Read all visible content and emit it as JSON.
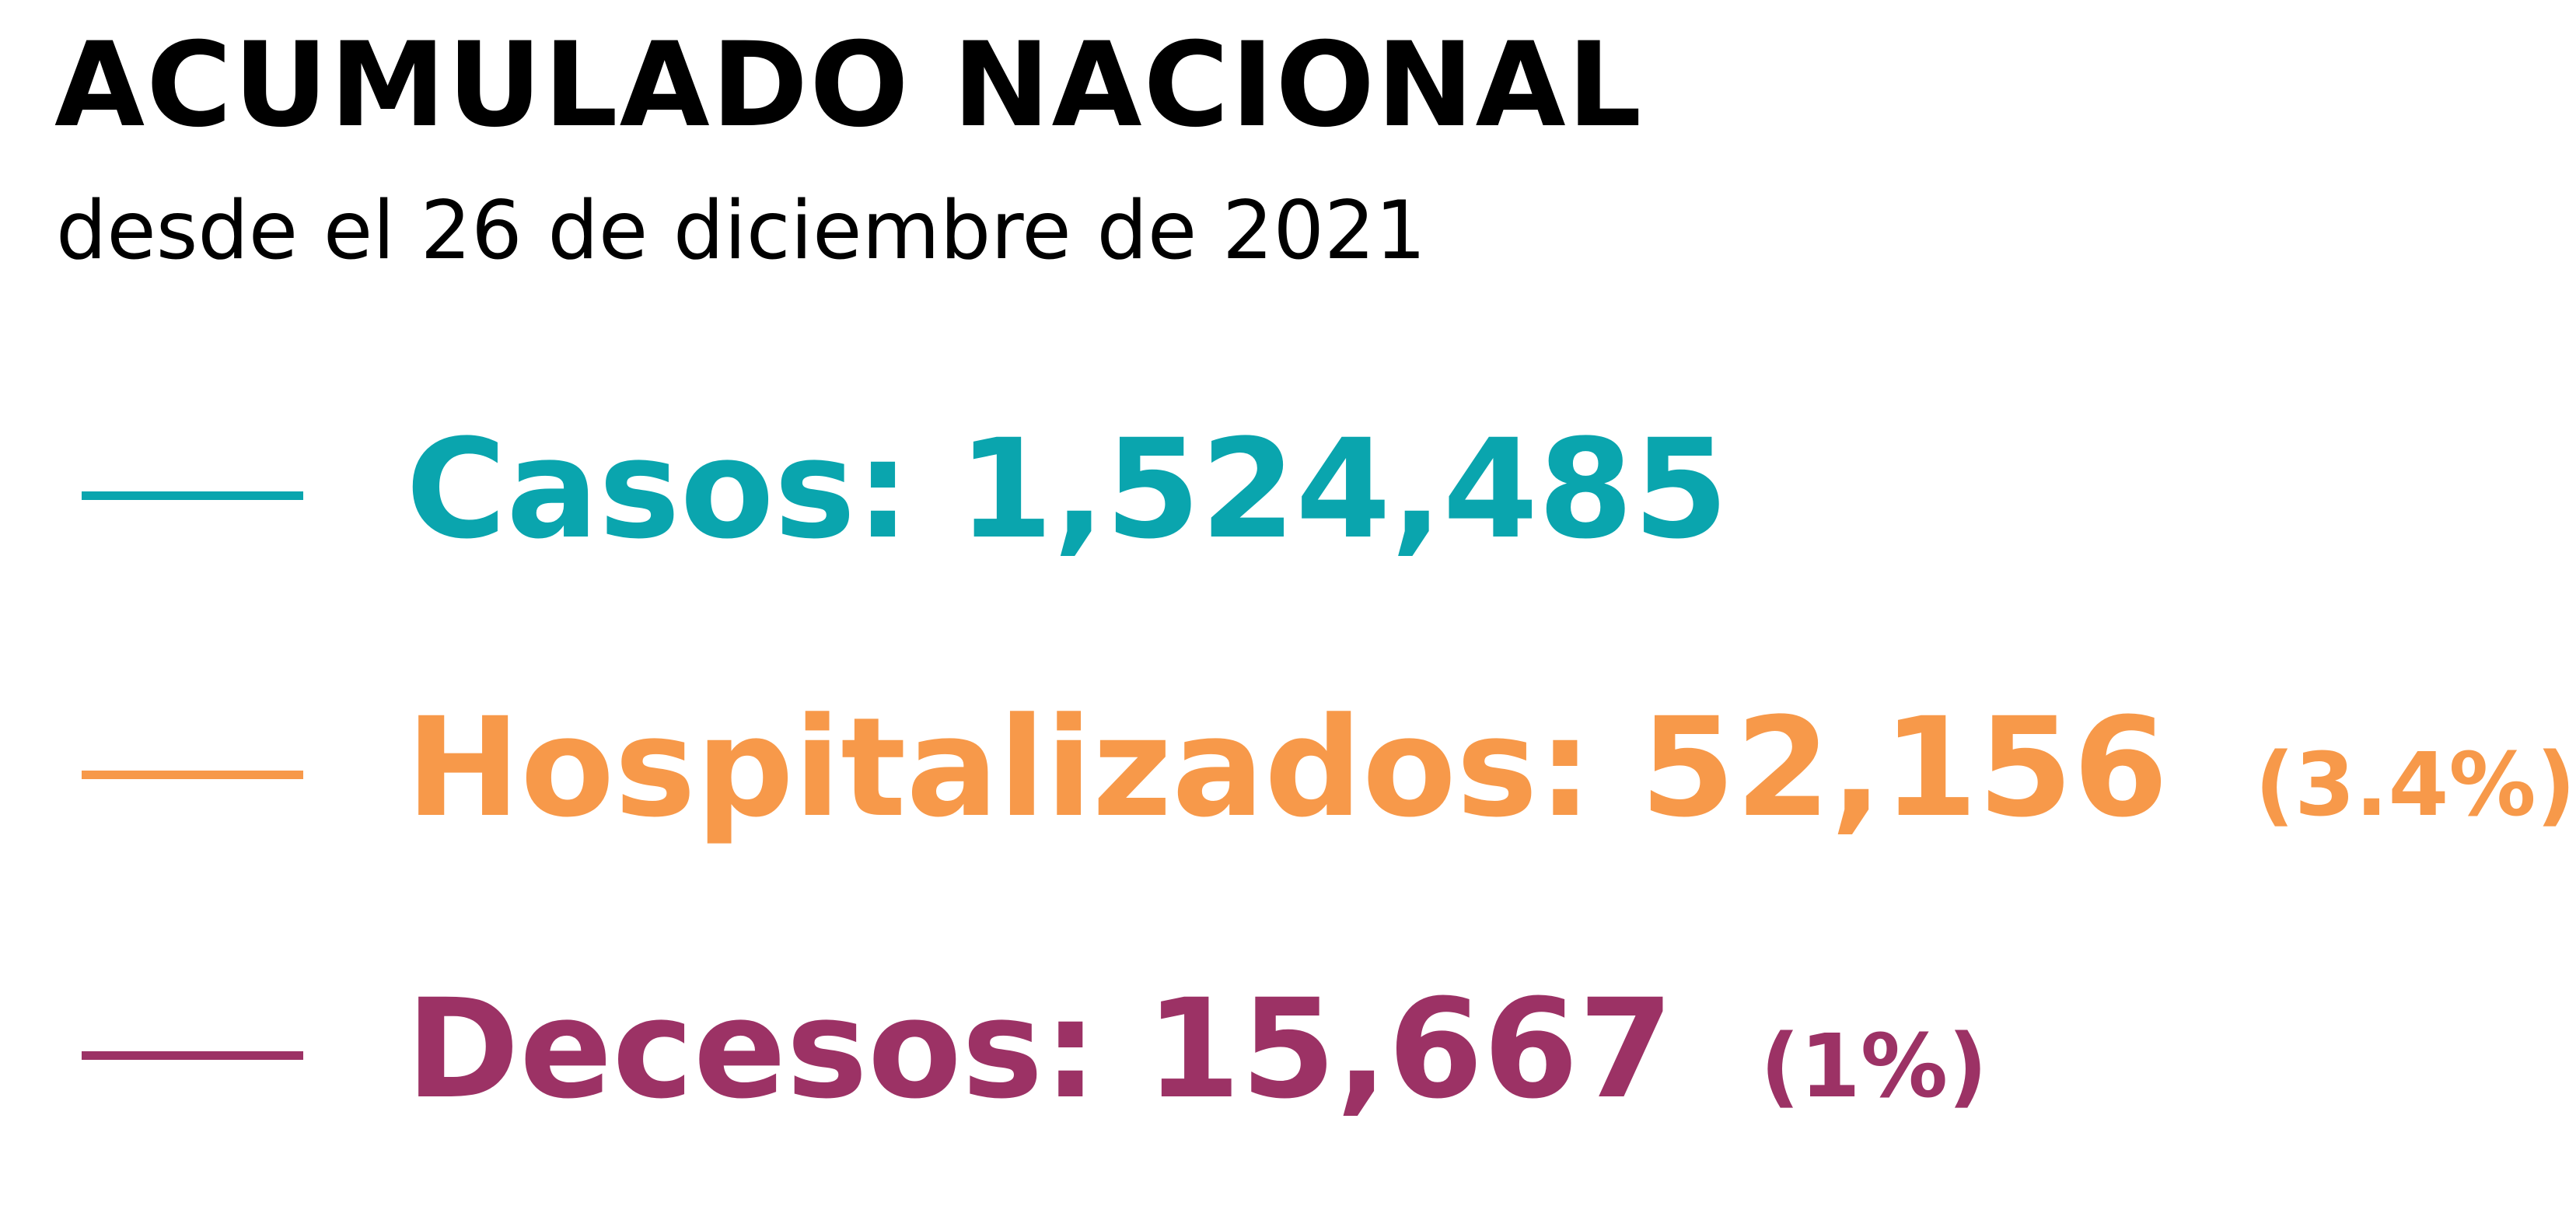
{
  "title": "ACUMULADO NACIONAL",
  "subtitle": "desde el 26 de diciembre de 2021",
  "colors": {
    "casos": "#0aa5ae",
    "hospitalizados": "#f7994a",
    "decesos": "#9c3265"
  },
  "metrics": {
    "casos": {
      "label": "Casos:",
      "value": "1,524,485",
      "pct": ""
    },
    "hospitalizados": {
      "label": "Hospitalizados:",
      "value": "52,156",
      "pct": "(3.4%)"
    },
    "decesos": {
      "label": "Decesos:",
      "value": "15,667",
      "pct": "(1%)"
    }
  },
  "chart_data": {
    "type": "table",
    "title": "ACUMULADO NACIONAL",
    "subtitle": "desde el 26 de diciembre de 2021",
    "series": [
      {
        "name": "Casos",
        "values": [
          1524485
        ]
      },
      {
        "name": "Hospitalizados",
        "values": [
          52156
        ],
        "percent": 3.4
      },
      {
        "name": "Decesos",
        "values": [
          15667
        ],
        "percent": 1
      }
    ]
  }
}
